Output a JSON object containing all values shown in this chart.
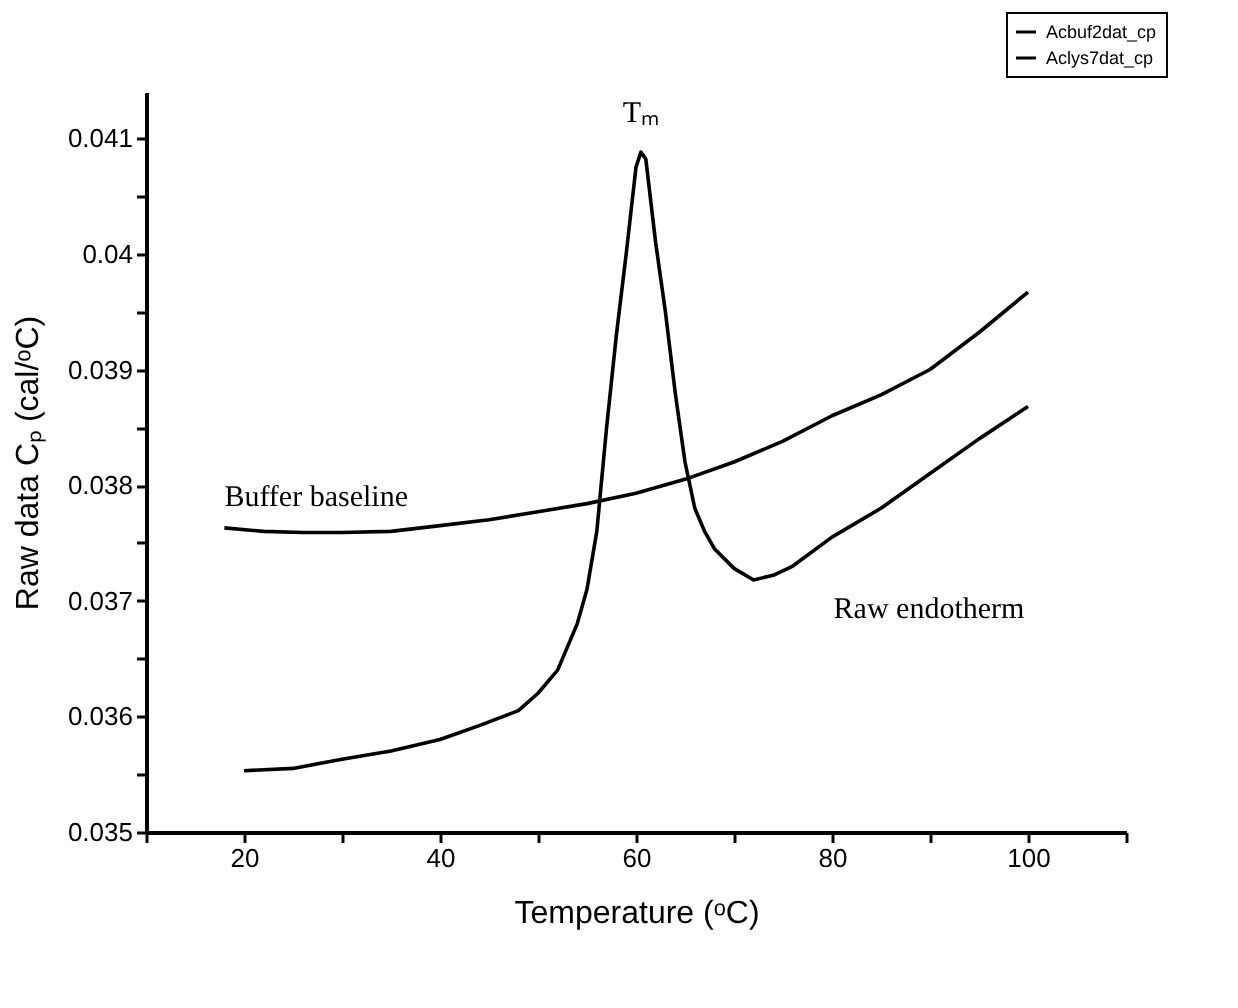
{
  "chart_data": {
    "type": "line",
    "xlabel": "Temperature (ᵒC)",
    "ylabel": "Raw data  Cₚ (cal/ᵒC)",
    "xlim": [
      10,
      110
    ],
    "ylim": [
      0.035,
      0.0414
    ],
    "xticks": [
      {
        "value": 10,
        "label": null
      },
      20,
      {
        "value": 30,
        "label": null
      },
      40,
      {
        "value": 50,
        "label": null
      },
      60,
      {
        "value": 70,
        "label": null
      },
      80,
      {
        "value": 90,
        "label": null
      },
      100,
      {
        "value": 110,
        "label": null
      }
    ],
    "yticks": [
      0.035,
      {
        "value": 0.0355,
        "label": null
      },
      0.036,
      {
        "value": 0.0365,
        "label": null
      },
      0.037,
      {
        "value": 0.0375,
        "label": null
      },
      0.038,
      {
        "value": 0.0385,
        "label": null
      },
      0.039,
      {
        "value": 0.0395,
        "label": null
      },
      0.04,
      {
        "value": 0.0405,
        "label": null
      },
      0.041
    ],
    "grid": false,
    "legend": "top right",
    "marker": "none",
    "line_style": "solid",
    "series": [
      {
        "name": "Acbuf2dat_cp",
        "color": "#000000",
        "x": [
          18,
          22,
          26,
          30,
          35,
          40,
          45,
          50,
          55,
          60,
          65,
          70,
          75,
          80,
          85,
          90,
          95,
          100
        ],
        "values": [
          0.03763,
          0.0376,
          0.03759,
          0.03759,
          0.0376,
          0.03765,
          0.0377,
          0.03777,
          0.03784,
          0.03793,
          0.03805,
          0.0382,
          0.03838,
          0.0386,
          0.03878,
          0.039,
          0.03932,
          0.03967
        ]
      },
      {
        "name": "Aclys7dat_cp",
        "color": "#000000",
        "x": [
          20,
          25,
          30,
          35,
          40,
          44,
          48,
          50,
          52,
          54,
          55,
          56,
          57,
          58,
          59,
          60,
          60.5,
          61,
          62,
          63,
          64,
          65,
          66,
          67,
          68,
          70,
          72,
          74,
          76,
          80,
          85,
          90,
          95,
          100
        ],
        "values": [
          0.03553,
          0.03555,
          0.03563,
          0.0357,
          0.0358,
          0.03592,
          0.03605,
          0.0362,
          0.0364,
          0.0368,
          0.0371,
          0.0376,
          0.0385,
          0.0393,
          0.04,
          0.04075,
          0.04088,
          0.04082,
          0.0401,
          0.0395,
          0.0388,
          0.0382,
          0.0378,
          0.0376,
          0.03745,
          0.03728,
          0.03718,
          0.03722,
          0.0373,
          0.03755,
          0.0378,
          0.0381,
          0.0384,
          0.03868
        ]
      }
    ],
    "annotations": [
      {
        "text": "Tₘ",
        "x": 60.5,
        "y": 0.04088
      },
      {
        "text": "Buffer baseline",
        "x": 18,
        "y": 0.03763
      },
      {
        "text": "Raw endotherm",
        "x": 72,
        "y": 0.03718
      }
    ]
  }
}
